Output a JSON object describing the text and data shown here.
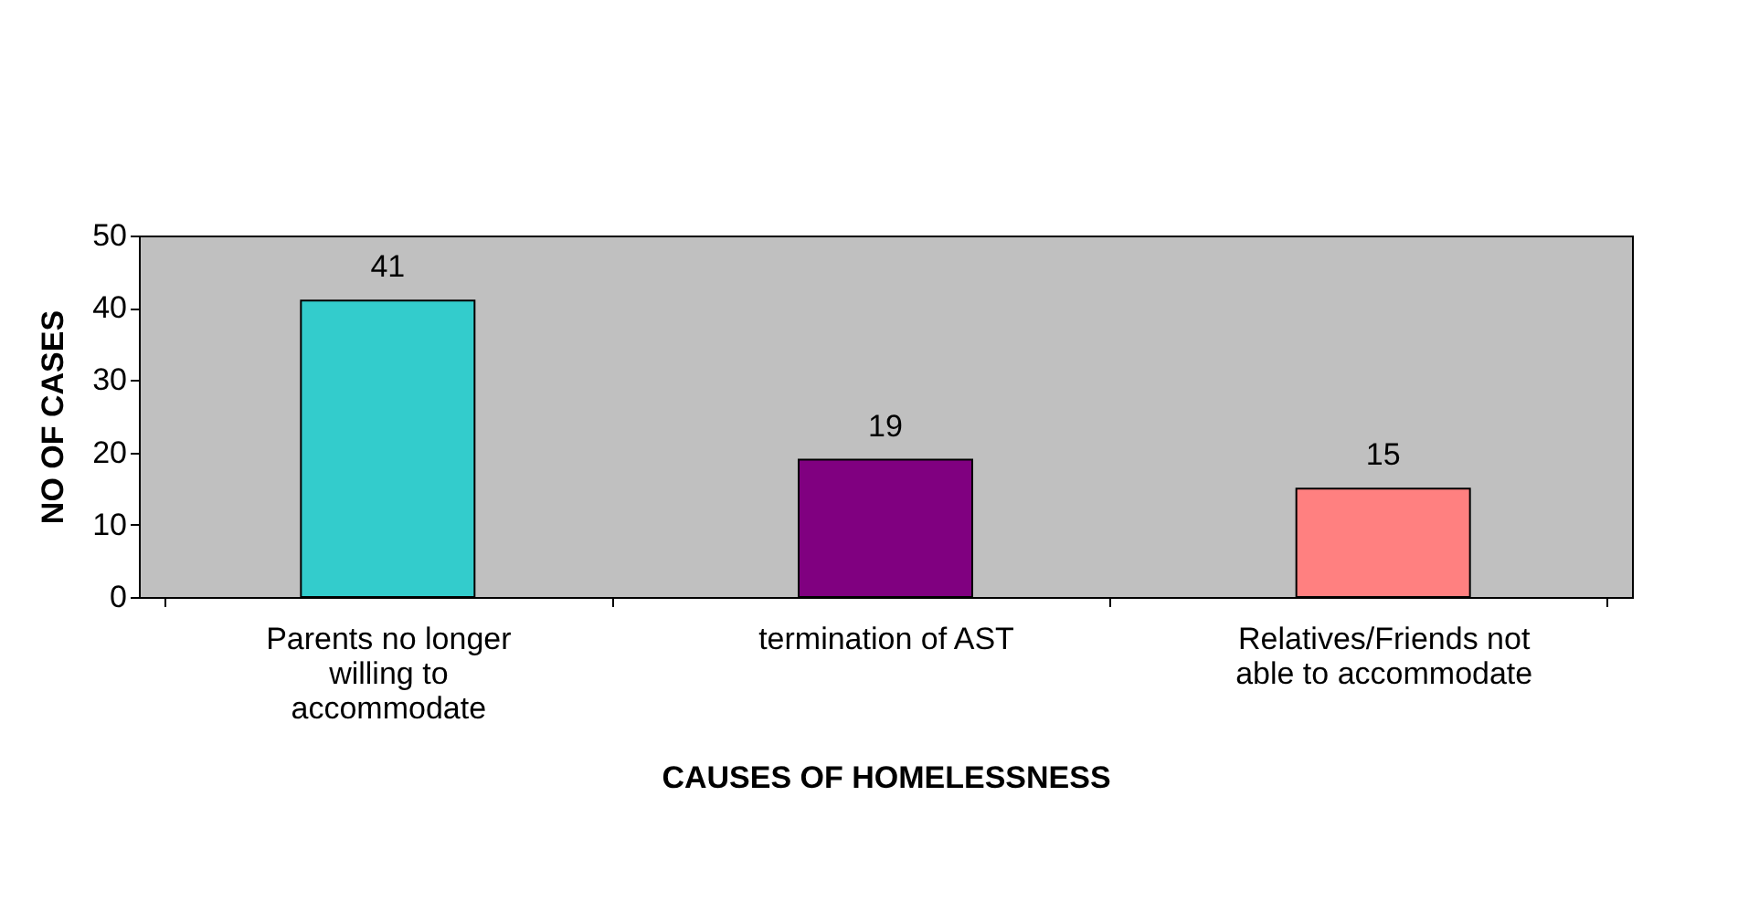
{
  "chart_data": {
    "type": "bar",
    "xlabel": "CAUSES OF HOMELESSNESS",
    "ylabel": "NO OF CASES",
    "categories": [
      "Parents no longer willing to accommodate",
      "termination of AST",
      "Relatives/Friends not able to accommodate"
    ],
    "values": [
      41,
      19,
      15
    ],
    "colors": [
      "#33cccc",
      "#800080",
      "#ff8080"
    ],
    "ylim": [
      0,
      50
    ],
    "yticks": [
      0,
      10,
      20,
      30,
      40,
      50
    ],
    "grid": false,
    "legend": false,
    "data_labels": true
  }
}
